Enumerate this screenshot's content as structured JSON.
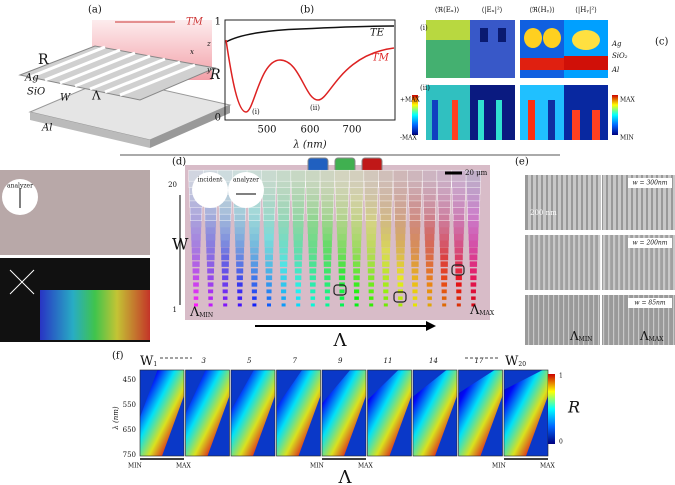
{
  "panel_a": {
    "label": "(a)",
    "polarization": "TM",
    "resistor": "R",
    "layers": [
      "Ag",
      "SiO",
      "Al"
    ],
    "width": "W",
    "period": "Λ",
    "axes": [
      "x",
      "z",
      "y"
    ]
  },
  "panel_b": {
    "label": "(b)",
    "curves": [
      "TE",
      "TM"
    ],
    "y_label": "R",
    "markers": [
      "(i)",
      "(ii)"
    ],
    "x_label": "λ (nm)",
    "xticks": [
      500,
      600,
      700
    ],
    "yticks": [
      1,
      0
    ]
  },
  "panel_c": {
    "label": "(c)",
    "headers": [
      "⟨ℜ(Eₓ)⟩",
      "⟨|Eₓ|²⟩",
      "⟨ℜ(Hᵧ)⟩",
      "⟨|Hᵧ|²⟩"
    ],
    "rows": [
      "(i)",
      "(ii)"
    ],
    "layers": [
      "Ag",
      "SiO₂",
      "Al"
    ],
    "left_scale": [
      "+MAX",
      "-MAX"
    ],
    "right_scale": [
      "MAX",
      "MIN"
    ]
  },
  "left_insets": {
    "analyzer": "analyzer"
  },
  "panel_d": {
    "label": "(d)",
    "incident": "incident",
    "analyzer": "analyzer",
    "scale": "20 μm",
    "y_label": "W",
    "y_top": 20,
    "y_bottom": 1,
    "x_label": "Λ",
    "min": {
      "symbol": "Λ",
      "sub": "MIN"
    },
    "max": {
      "symbol": "Λ",
      "sub": "MAX"
    }
  },
  "panel_e": {
    "label": "(e)",
    "scale": "200 nm",
    "widths": [
      "w = 300nm",
      "w = 200nm",
      "w = 85nm"
    ],
    "min": {
      "symbol": "Λ",
      "sub": "MIN"
    },
    "max": {
      "symbol": "Λ",
      "sub": "MAX"
    }
  },
  "panel_f": {
    "label": "(f)",
    "first": {
      "symbol": "W",
      "sub": "1"
    },
    "panels": [
      "3",
      "5",
      "7",
      "9",
      "11",
      "14",
      "17"
    ],
    "last": {
      "symbol": "W",
      "sub": "20"
    },
    "yticks": [
      450,
      550,
      650,
      750
    ],
    "y_label": "λ (nm)",
    "bar_label": "R",
    "bar_ticks": [
      1,
      0
    ],
    "min": "MIN",
    "max": "MAX",
    "x_label": "Λ"
  }
}
